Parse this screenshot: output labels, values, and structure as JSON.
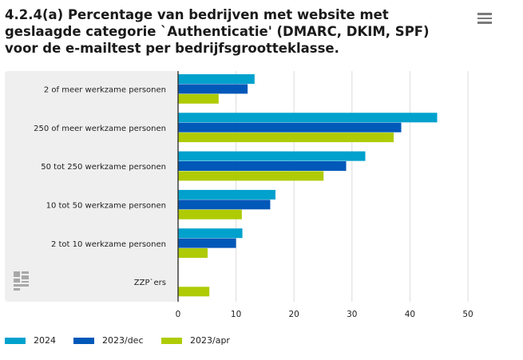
{
  "title": "4.2.4(a) Percentage van bedrijven met website met geslaagde categorie `Authenticatie' (DMARC, DKIM, SPF) voor de e-mailtest per bedrijfsgrootteklasse.",
  "icons": {
    "menu": "hamburger-menu-icon",
    "logo": "cbs-logo-icon"
  },
  "chart_data": {
    "type": "bar",
    "orientation": "horizontal",
    "categories": [
      "2 of meer werkzame personen",
      "250 of meer werkzame personen",
      "50 tot 250 werkzame personen",
      "10 tot 50 werkzame personen",
      "2 tot 10 werkzame personen",
      "ZZP`ers"
    ],
    "series": [
      {
        "name": "2024",
        "color": "#00a1cd",
        "values": [
          13.2,
          44.7,
          32.3,
          16.8,
          11.1,
          0
        ]
      },
      {
        "name": "2023/dec",
        "color": "#0058b8",
        "values": [
          12.0,
          38.5,
          29.0,
          15.9,
          10.0,
          0
        ]
      },
      {
        "name": "2023/apr",
        "color": "#afcb05",
        "values": [
          7.0,
          37.2,
          25.1,
          11.0,
          5.1,
          5.4
        ]
      }
    ],
    "xlim": [
      0,
      50
    ],
    "xticks": [
      0,
      10,
      20,
      30,
      40,
      50
    ],
    "grid": true,
    "legend_position": "bottom-left"
  }
}
